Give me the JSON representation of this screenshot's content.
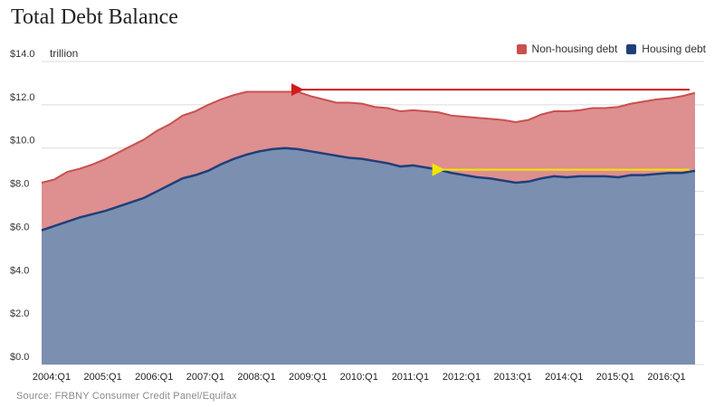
{
  "chart_data": {
    "type": "area",
    "title": "Total Debt Balance",
    "unit_label": "trillion",
    "source": "Source: FRBNY Consumer Credit Panel/Equifax",
    "x": [
      "2004:Q1",
      "2004:Q2",
      "2004:Q3",
      "2004:Q4",
      "2005:Q1",
      "2005:Q2",
      "2005:Q3",
      "2005:Q4",
      "2006:Q1",
      "2006:Q2",
      "2006:Q3",
      "2006:Q4",
      "2007:Q1",
      "2007:Q2",
      "2007:Q3",
      "2007:Q4",
      "2008:Q1",
      "2008:Q2",
      "2008:Q3",
      "2008:Q4",
      "2009:Q1",
      "2009:Q2",
      "2009:Q3",
      "2009:Q4",
      "2010:Q1",
      "2010:Q2",
      "2010:Q3",
      "2010:Q4",
      "2011:Q1",
      "2011:Q2",
      "2011:Q3",
      "2011:Q4",
      "2012:Q1",
      "2012:Q2",
      "2012:Q3",
      "2012:Q4",
      "2013:Q1",
      "2013:Q2",
      "2013:Q3",
      "2013:Q4",
      "2014:Q1",
      "2014:Q2",
      "2014:Q3",
      "2014:Q4",
      "2015:Q1",
      "2015:Q2",
      "2015:Q3",
      "2015:Q4",
      "2016:Q1",
      "2016:Q2",
      "2016:Q3",
      "2016:Q4"
    ],
    "x_tick_labels": [
      "2004:Q1",
      "2005:Q1",
      "2006:Q1",
      "2007:Q1",
      "2008:Q1",
      "2009:Q1",
      "2010:Q1",
      "2011:Q1",
      "2012:Q1",
      "2013:Q1",
      "2014:Q1",
      "2015:Q1",
      "2016:Q1"
    ],
    "y_tick_labels": [
      "$0.0",
      "$2.0",
      "$4.0",
      "$6.0",
      "$8.0",
      "$10.0",
      "$12.0",
      "$14.0"
    ],
    "ylim": [
      0,
      14
    ],
    "stacked": true,
    "grid": true,
    "legend_position": "top-right",
    "series": [
      {
        "name": "Housing debt",
        "color": "#1f3f7a",
        "fill": "#7b8fb1",
        "values": [
          6.2,
          6.4,
          6.6,
          6.8,
          6.95,
          7.1,
          7.3,
          7.5,
          7.7,
          8.0,
          8.3,
          8.6,
          8.75,
          8.95,
          9.25,
          9.5,
          9.7,
          9.85,
          9.95,
          10.0,
          9.95,
          9.85,
          9.75,
          9.65,
          9.55,
          9.5,
          9.4,
          9.3,
          9.15,
          9.2,
          9.1,
          9.0,
          8.85,
          8.75,
          8.65,
          8.6,
          8.5,
          8.4,
          8.45,
          8.6,
          8.7,
          8.65,
          8.7,
          8.7,
          8.7,
          8.65,
          8.75,
          8.75,
          8.8,
          8.85,
          8.85,
          8.95
        ]
      },
      {
        "name": "Non-housing debt",
        "color": "#c9504f",
        "fill": "#de8f8f",
        "values": [
          2.2,
          2.15,
          2.3,
          2.25,
          2.3,
          2.4,
          2.5,
          2.6,
          2.7,
          2.8,
          2.8,
          2.9,
          2.95,
          3.05,
          3.0,
          2.95,
          2.9,
          2.75,
          2.65,
          2.6,
          2.65,
          2.55,
          2.5,
          2.45,
          2.55,
          2.55,
          2.5,
          2.55,
          2.55,
          2.55,
          2.6,
          2.65,
          2.65,
          2.7,
          2.75,
          2.75,
          2.8,
          2.8,
          2.85,
          2.95,
          3.0,
          3.05,
          3.05,
          3.15,
          3.15,
          3.25,
          3.3,
          3.4,
          3.45,
          3.45,
          3.55,
          3.6
        ]
      }
    ],
    "annotations": [
      {
        "type": "arrow",
        "color": "#d21b1b",
        "y": 12.7,
        "from_index": 51,
        "to_index": 20
      },
      {
        "type": "arrow",
        "color": "#f2e600",
        "y": 9.0,
        "from_index": 51,
        "to_index": 31
      }
    ]
  }
}
